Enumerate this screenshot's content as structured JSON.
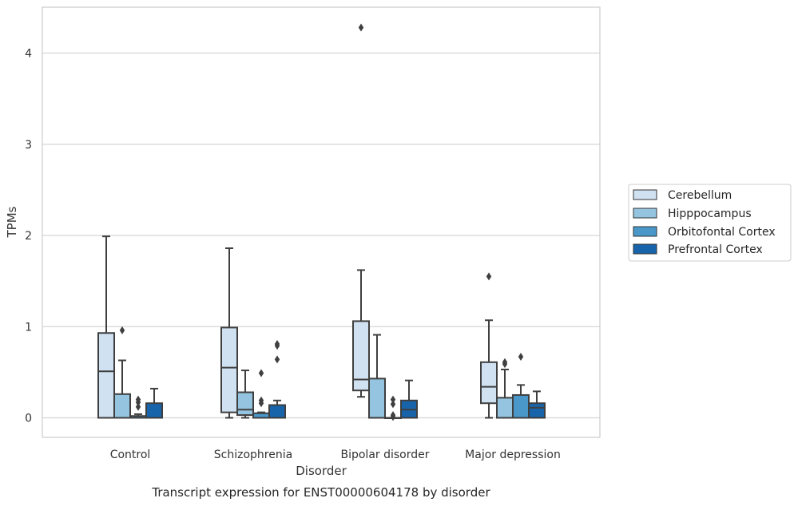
{
  "chart_data": {
    "type": "box",
    "ylabel": "TPMs",
    "xlabel": "Disorder",
    "caption": "Transcript expression for ENST00000604178 by disorder",
    "ylim": [
      -0.21,
      4.5
    ],
    "yticks": [
      0,
      1,
      2,
      3,
      4
    ],
    "grid": true,
    "legend_position": "right",
    "categories": [
      "Control",
      "Schizophrenia",
      "Bipolar disorder",
      "Major depression"
    ],
    "series": [
      {
        "name": "Cerebellum",
        "color": "#d0e1f2",
        "boxes": [
          {
            "whisker_low": 0.0,
            "q1": 0.0,
            "median": 0.51,
            "q3": 0.93,
            "whisker_high": 1.99,
            "outliers": []
          },
          {
            "whisker_low": 0.0,
            "q1": 0.06,
            "median": 0.55,
            "q3": 0.99,
            "whisker_high": 1.86,
            "outliers": []
          },
          {
            "whisker_low": 0.23,
            "q1": 0.3,
            "median": 0.42,
            "q3": 1.06,
            "whisker_high": 1.62,
            "outliers": [
              4.28
            ]
          },
          {
            "whisker_low": 0.0,
            "q1": 0.16,
            "median": 0.34,
            "q3": 0.61,
            "whisker_high": 1.07,
            "outliers": [
              1.55
            ]
          }
        ]
      },
      {
        "name": "Hipppocampus",
        "color": "#94c4df",
        "boxes": [
          {
            "whisker_low": 0.0,
            "q1": 0.0,
            "median": 0.0,
            "q3": 0.26,
            "whisker_high": 0.63,
            "outliers": [
              0.96
            ]
          },
          {
            "whisker_low": 0.0,
            "q1": 0.03,
            "median": 0.09,
            "q3": 0.28,
            "whisker_high": 0.52,
            "outliers": []
          },
          {
            "whisker_low": 0.0,
            "q1": 0.0,
            "median": 0.0,
            "q3": 0.43,
            "whisker_high": 0.91,
            "outliers": []
          },
          {
            "whisker_low": 0.0,
            "q1": 0.0,
            "median": 0.0,
            "q3": 0.22,
            "whisker_high": 0.53,
            "outliers": [
              0.61,
              0.59
            ]
          }
        ]
      },
      {
        "name": "Orbitofontal Cortex",
        "color": "#4a98c9",
        "boxes": [
          {
            "whisker_low": 0.0,
            "q1": 0.0,
            "median": 0.0,
            "q3": 0.02,
            "whisker_high": 0.04,
            "outliers": [
              0.2,
              0.17,
              0.12
            ]
          },
          {
            "whisker_low": 0.0,
            "q1": 0.0,
            "median": 0.0,
            "q3": 0.05,
            "whisker_high": 0.06,
            "outliers": [
              0.49,
              0.19,
              0.16
            ]
          },
          {
            "whisker_low": 0.0,
            "q1": 0.0,
            "median": 0.0,
            "q3": 0.0,
            "whisker_high": 0.0,
            "outliers": [
              0.2,
              0.15,
              0.03,
              0.01
            ]
          },
          {
            "whisker_low": 0.0,
            "q1": 0.0,
            "median": 0.0,
            "q3": 0.25,
            "whisker_high": 0.36,
            "outliers": [
              0.67
            ]
          }
        ]
      },
      {
        "name": "Prefrontal Cortex",
        "color": "#1764ab",
        "boxes": [
          {
            "whisker_low": 0.0,
            "q1": 0.0,
            "median": 0.0,
            "q3": 0.16,
            "whisker_high": 0.32,
            "outliers": []
          },
          {
            "whisker_low": 0.0,
            "q1": 0.0,
            "median": 0.0,
            "q3": 0.14,
            "whisker_high": 0.19,
            "outliers": [
              0.81,
              0.79,
              0.64
            ]
          },
          {
            "whisker_low": 0.0,
            "q1": 0.0,
            "median": 0.09,
            "q3": 0.19,
            "whisker_high": 0.41,
            "outliers": []
          },
          {
            "whisker_low": 0.0,
            "q1": 0.0,
            "median": 0.11,
            "q3": 0.16,
            "whisker_high": 0.29,
            "outliers": []
          }
        ]
      }
    ]
  }
}
